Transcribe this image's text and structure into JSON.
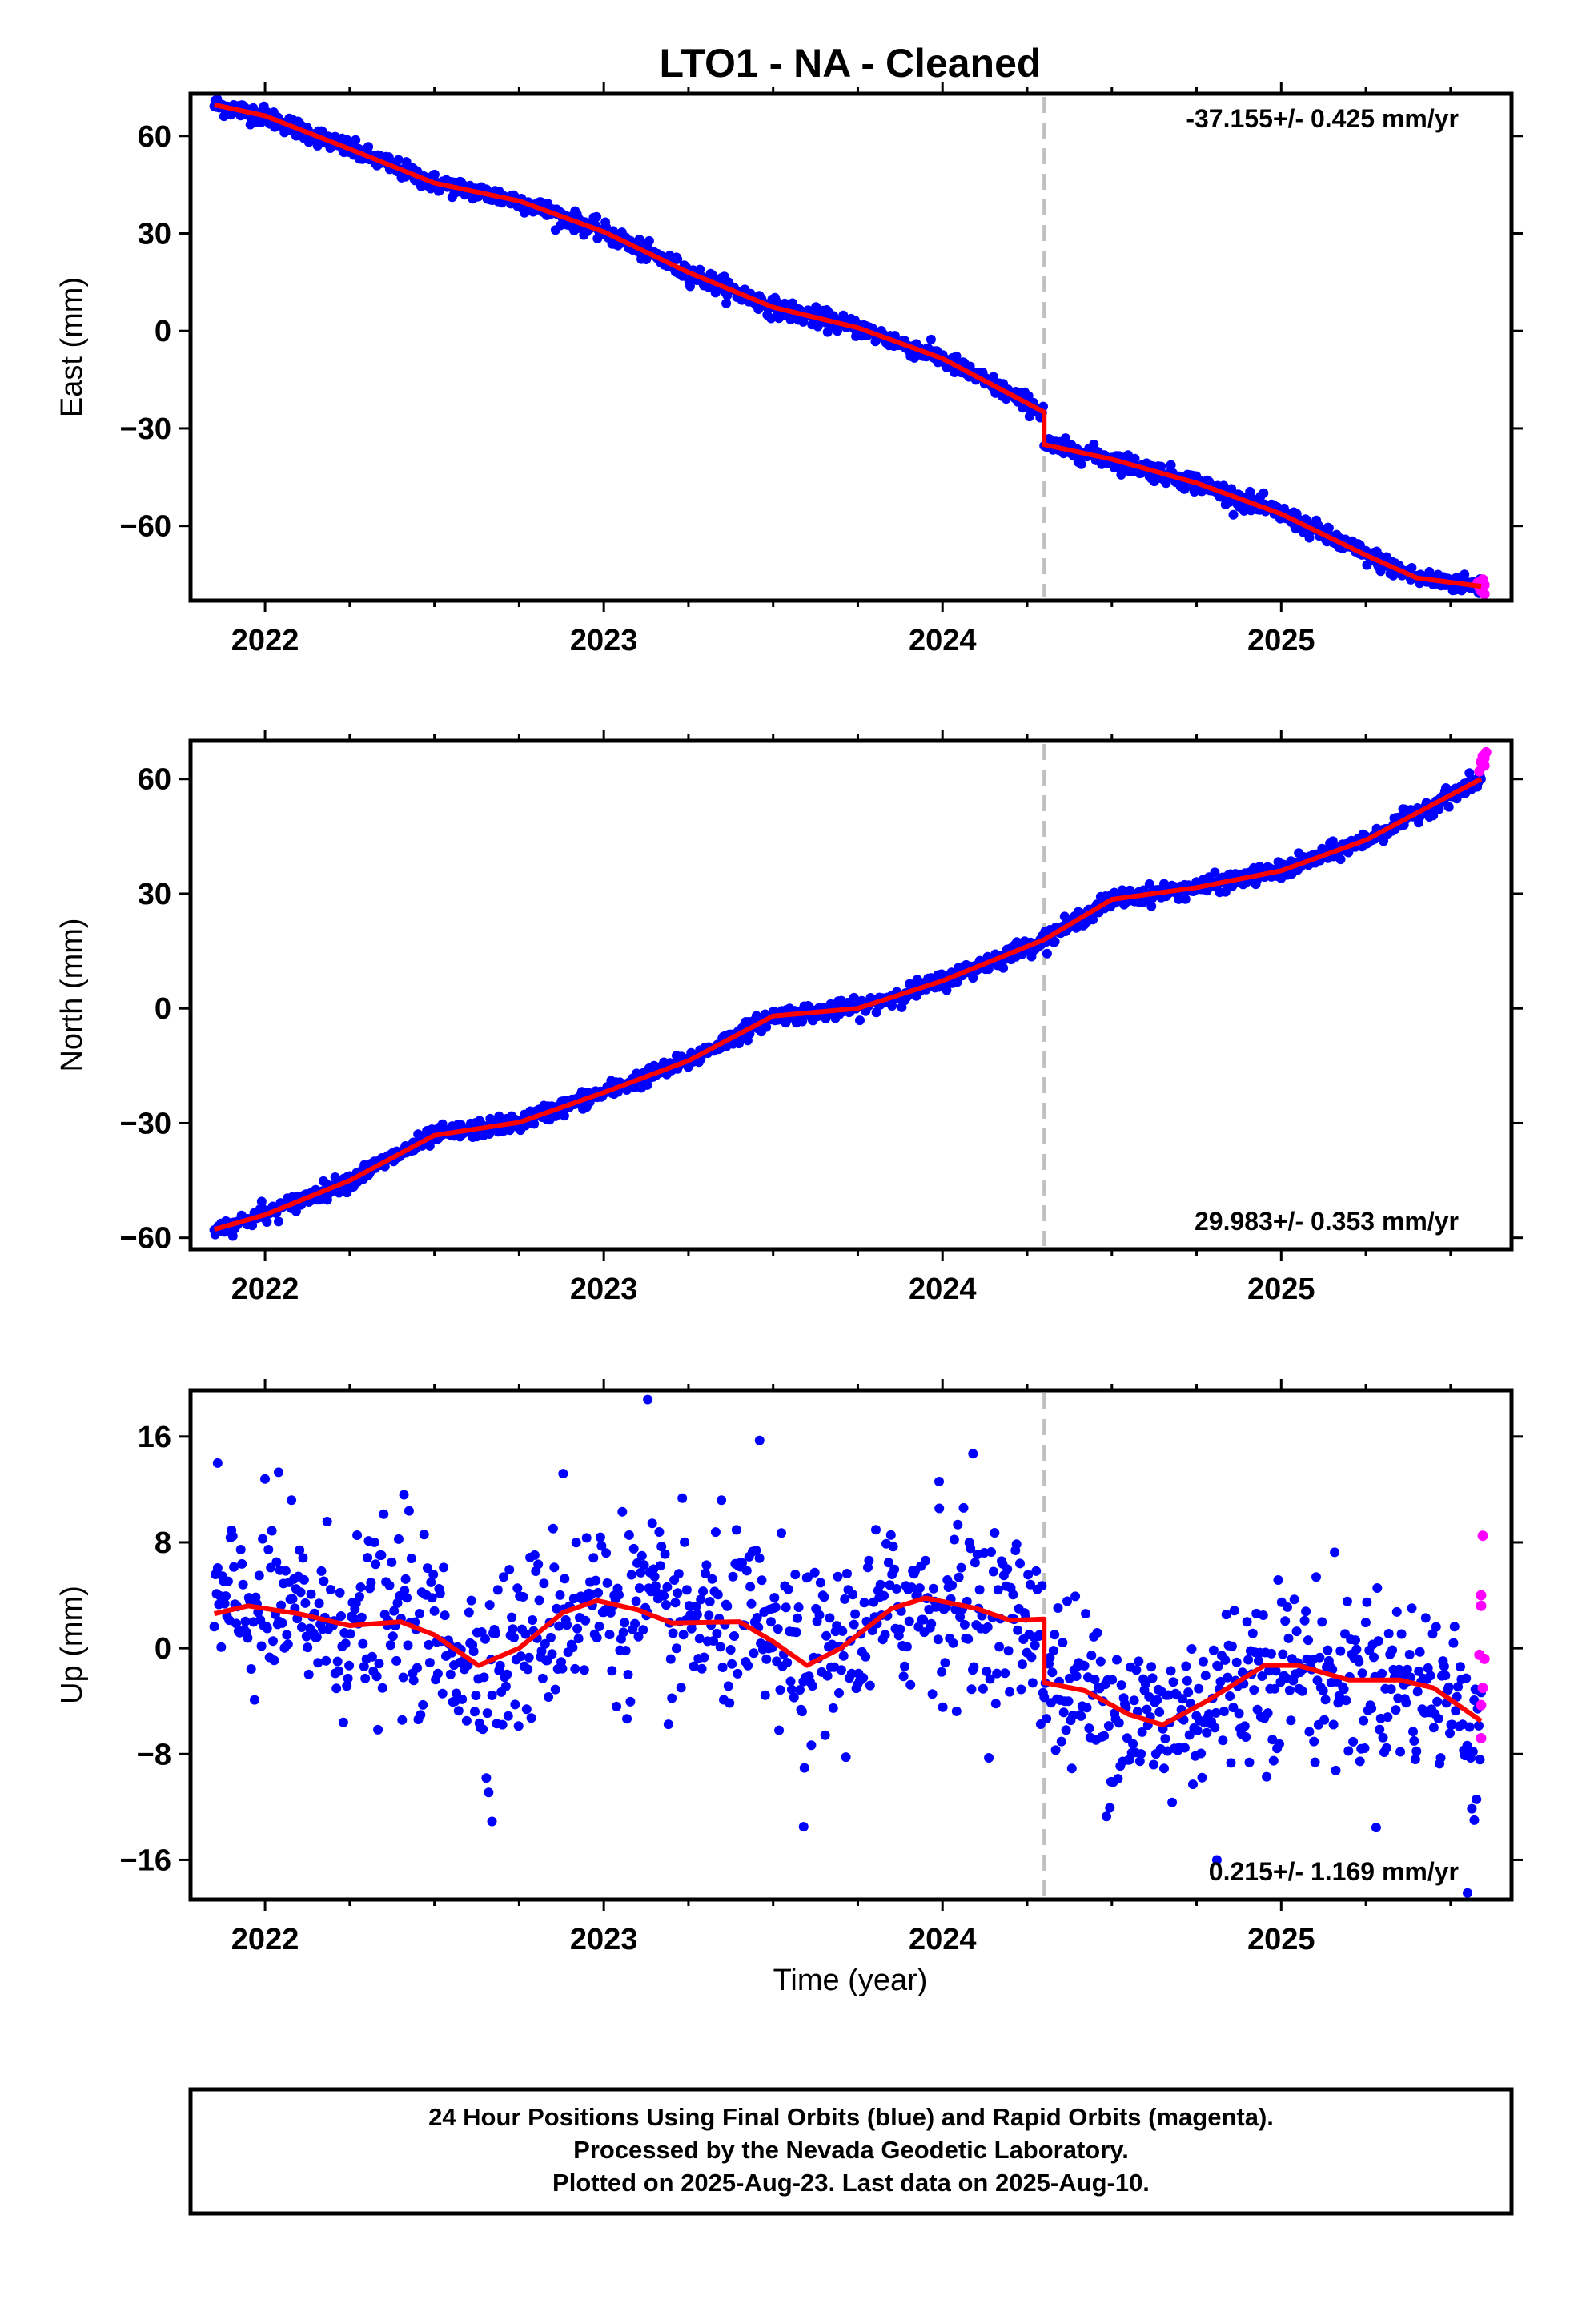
{
  "title": "LTO1  - NA - Cleaned",
  "xlabel": "Time (year)",
  "footer": {
    "line1": "24 Hour Positions Using Final Orbits (blue) and Rapid Orbits (magenta).",
    "line2": "Processed by the Nevada Geodetic Laboratory.",
    "line3": "Plotted on 2025-Aug-23. Last data on 2025-Aug-10."
  },
  "colors": {
    "final_orbits": "#0000ff",
    "rapid_orbits": "#ff00ff",
    "model": "#ff0000",
    "event_line": "#c0c0c0"
  },
  "chart_data": [
    {
      "type": "scatter",
      "ylabel": "East (mm)",
      "rate_label": "-37.155+/- 0.425 mm/yr",
      "xlim": [
        2021.78,
        2025.68
      ],
      "ylim": [
        -83,
        73
      ],
      "yticks": [
        60,
        30,
        0,
        -30,
        -60
      ],
      "xticks": [
        2022,
        2023,
        2024,
        2025
      ],
      "event_x": 2024.3,
      "step": -10,
      "rate": -37.155,
      "seasonal": {
        "a1": 2.5,
        "p1": 0.3,
        "a2": 1.2,
        "p2": 1.0
      },
      "offset": 1.2,
      "noise": 1.4,
      "outliers": [],
      "x_start": 2021.85,
      "x_end": 2025.59,
      "model_points": [
        [
          2021.85,
          69.6
        ],
        [
          2022.0,
          66.2
        ],
        [
          2022.25,
          56.0
        ],
        [
          2022.5,
          45.5
        ],
        [
          2022.75,
          40.0
        ],
        [
          2023.0,
          30.5
        ],
        [
          2023.25,
          18.0
        ],
        [
          2023.5,
          7.3
        ],
        [
          2023.75,
          1.0
        ],
        [
          2024.0,
          -8.5
        ],
        [
          2024.3,
          -25.0
        ],
        [
          2024.3,
          -35.0
        ],
        [
          2024.5,
          -39.5
        ],
        [
          2024.75,
          -46.8
        ],
        [
          2025.0,
          -56.3
        ],
        [
          2025.25,
          -69.0
        ],
        [
          2025.4,
          -76.0
        ],
        [
          2025.59,
          -78.6
        ]
      ],
      "rapid_points": [
        [
          2025.58,
          -77.5
        ],
        [
          2025.585,
          -79.0
        ],
        [
          2025.59,
          -80.0
        ],
        [
          2025.595,
          -76.5
        ],
        [
          2025.6,
          -78.2
        ],
        [
          2025.6,
          -81.0
        ]
      ]
    },
    {
      "type": "scatter",
      "ylabel": "North (mm)",
      "rate_label": "29.983+/- 0.353 mm/yr",
      "xlim": [
        2021.78,
        2025.68
      ],
      "ylim": [
        -63,
        70
      ],
      "yticks": [
        60,
        30,
        0,
        -30,
        -60
      ],
      "xticks": [
        2022,
        2023,
        2024,
        2025
      ],
      "event_x": 2024.3,
      "step": 0,
      "rate": 29.983,
      "seasonal": {
        "a1": 3.0,
        "p1": 2.8,
        "a2": 1.0,
        "p2": 1.5
      },
      "offset": 0,
      "noise": 1.1,
      "outliers": [
        [
          2021.99,
          -50.5
        ],
        [
          2023.72,
          1.5
        ]
      ],
      "x_start": 2021.85,
      "x_end": 2025.59,
      "model_points": [
        [
          2021.85,
          -57.8
        ],
        [
          2022.0,
          -54.0
        ],
        [
          2022.25,
          -45.0
        ],
        [
          2022.5,
          -33.2
        ],
        [
          2022.75,
          -29.8
        ],
        [
          2023.0,
          -22.0
        ],
        [
          2023.25,
          -13.7
        ],
        [
          2023.5,
          -2.0
        ],
        [
          2023.75,
          0.0
        ],
        [
          2024.0,
          7.2
        ],
        [
          2024.3,
          18.0
        ],
        [
          2024.5,
          28.5
        ],
        [
          2024.75,
          31.6
        ],
        [
          2025.0,
          36.0
        ],
        [
          2025.25,
          44.0
        ],
        [
          2025.59,
          60.0
        ]
      ],
      "rapid_points": [
        [
          2025.585,
          62.0
        ],
        [
          2025.59,
          64.5
        ],
        [
          2025.595,
          66.0
        ],
        [
          2025.6,
          63.5
        ],
        [
          2025.6,
          65.5
        ],
        [
          2025.605,
          67.0
        ]
      ]
    },
    {
      "type": "scatter",
      "ylabel": "Up (mm)",
      "rate_label": "0.215+/- 1.169 mm/yr",
      "xlim": [
        2021.78,
        2025.68
      ],
      "ylim": [
        -19,
        19.5
      ],
      "yticks": [
        16,
        8,
        0,
        -8,
        -16
      ],
      "xticks": [
        2022,
        2023,
        2024,
        2025
      ],
      "event_x": 2024.3,
      "step": -5,
      "rate": 0.215,
      "seasonal": {
        "a1": 2.6,
        "p1": -0.6,
        "a2": 0.4,
        "p2": 0.0
      },
      "offset": 0.2,
      "noise": 3.3,
      "outliers": [
        [
          2023.13,
          18.8
        ],
        [
          2023.46,
          15.7
        ],
        [
          2021.86,
          14.0
        ],
        [
          2022.04,
          13.3
        ],
        [
          2022.88,
          13.2
        ],
        [
          2023.99,
          12.6
        ],
        [
          2024.09,
          14.7
        ],
        [
          2022.41,
          11.6
        ],
        [
          2023.59,
          -13.5
        ],
        [
          2022.67,
          -13.1
        ],
        [
          2025.55,
          -18.5
        ],
        [
          2024.81,
          -16.0
        ],
        [
          2025.57,
          -13.0
        ]
      ],
      "x_start": 2021.85,
      "x_end": 2025.59,
      "model_points": [
        [
          2021.85,
          2.6
        ],
        [
          2021.95,
          3.2
        ],
        [
          2022.1,
          2.6
        ],
        [
          2022.25,
          1.7
        ],
        [
          2022.4,
          2.0
        ],
        [
          2022.5,
          1.0
        ],
        [
          2022.63,
          -1.3
        ],
        [
          2022.75,
          0.0
        ],
        [
          2022.88,
          2.7
        ],
        [
          2022.98,
          3.6
        ],
        [
          2023.1,
          2.9
        ],
        [
          2023.2,
          1.9
        ],
        [
          2023.4,
          2.0
        ],
        [
          2023.5,
          0.5
        ],
        [
          2023.6,
          -1.3
        ],
        [
          2023.7,
          0.0
        ],
        [
          2023.85,
          3.0
        ],
        [
          2023.95,
          3.8
        ],
        [
          2024.1,
          3.0
        ],
        [
          2024.2,
          2.1
        ],
        [
          2024.3,
          2.2
        ],
        [
          2024.3,
          -2.6
        ],
        [
          2024.42,
          -3.2
        ],
        [
          2024.55,
          -5.0
        ],
        [
          2024.65,
          -5.8
        ],
        [
          2024.78,
          -4.0
        ],
        [
          2024.95,
          -1.3
        ],
        [
          2025.05,
          -1.3
        ],
        [
          2025.2,
          -2.4
        ],
        [
          2025.35,
          -2.4
        ],
        [
          2025.45,
          -3.0
        ],
        [
          2025.59,
          -5.5
        ]
      ],
      "rapid_points": [
        [
          2025.595,
          8.5
        ],
        [
          2025.59,
          4.0
        ],
        [
          2025.59,
          3.2
        ],
        [
          2025.585,
          -0.5
        ],
        [
          2025.6,
          -0.8
        ],
        [
          2025.595,
          -3.0
        ],
        [
          2025.59,
          -4.3
        ],
        [
          2025.59,
          -6.8
        ]
      ]
    }
  ]
}
